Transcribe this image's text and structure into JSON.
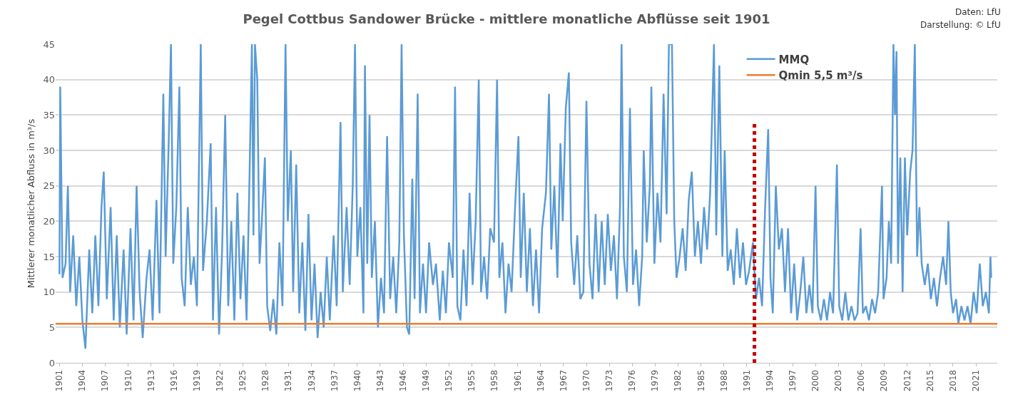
{
  "chart_data": {
    "type": "line",
    "title": "Pegel Cottbus Sandower Brücke - mittlere monatliche Abflüsse seit 1901",
    "ylabel": "Mittlerer monatlicher Abfluss in m³/s",
    "annotations": [
      "Daten: LfU",
      "Darstellung: © LfU"
    ],
    "xlim": [
      1900.5,
      2023.8
    ],
    "xticks": [
      1901,
      1904,
      1907,
      1910,
      1913,
      1916,
      1919,
      1922,
      1925,
      1928,
      1931,
      1934,
      1937,
      1940,
      1943,
      1946,
      1949,
      1952,
      1955,
      1958,
      1961,
      1964,
      1967,
      1970,
      1973,
      1976,
      1979,
      1982,
      1985,
      1988,
      1991,
      1994,
      1997,
      2000,
      2003,
      2006,
      2009,
      2012,
      2015,
      2018,
      2021
    ],
    "ylim": [
      0,
      45
    ],
    "yticks": [
      0,
      5,
      10,
      15,
      20,
      25,
      30,
      35,
      40,
      45
    ],
    "grid": "y",
    "legend": "top right",
    "marker": "none",
    "line_style": "solid",
    "ref_lines": [
      {
        "axis": "x",
        "value": 1992,
        "color": "#c00000",
        "line_style": "dotted"
      }
    ],
    "series": [
      {
        "name": "MMQ",
        "color": "#5b9bd5",
        "x": [
          1901.0,
          1901.1,
          1901.4,
          1901.8,
          1902.1,
          1902.4,
          1902.8,
          1903.2,
          1903.6,
          1904.0,
          1904.4,
          1904.9,
          1905.3,
          1905.7,
          1906.1,
          1906.5,
          1906.8,
          1907.2,
          1907.7,
          1908.1,
          1908.5,
          1908.9,
          1909.4,
          1909.8,
          1910.3,
          1910.7,
          1911.1,
          1911.5,
          1911.9,
          1912.4,
          1912.8,
          1913.2,
          1913.7,
          1914.1,
          1914.6,
          1914.9,
          1915.3,
          1915.6,
          1915.9,
          1916.3,
          1916.7,
          1917.0,
          1917.4,
          1917.8,
          1918.2,
          1918.6,
          1919.0,
          1919.5,
          1919.8,
          1920.3,
          1920.8,
          1921.1,
          1921.5,
          1921.9,
          1922.3,
          1922.7,
          1923.1,
          1923.5,
          1923.9,
          1924.3,
          1924.7,
          1925.1,
          1925.5,
          1925.9,
          1926.2,
          1926.4,
          1926.6,
          1926.9,
          1927.2,
          1927.5,
          1927.9,
          1928.2,
          1928.6,
          1929.0,
          1929.4,
          1929.8,
          1930.2,
          1930.6,
          1930.9,
          1931.3,
          1931.6,
          1932.0,
          1932.4,
          1932.8,
          1933.2,
          1933.6,
          1934.0,
          1934.4,
          1934.8,
          1935.2,
          1935.6,
          1936.0,
          1936.4,
          1936.9,
          1937.3,
          1937.8,
          1938.1,
          1938.6,
          1939.0,
          1939.4,
          1939.7,
          1940.0,
          1940.4,
          1940.8,
          1941.0,
          1941.3,
          1941.6,
          1941.9,
          1942.3,
          1942.7,
          1943.1,
          1943.5,
          1943.9,
          1944.3,
          1944.7,
          1945.1,
          1945.5,
          1945.8,
          1946.1,
          1946.5,
          1946.8,
          1947.2,
          1947.5,
          1947.9,
          1948.2,
          1948.6,
          1949.0,
          1949.4,
          1949.9,
          1950.3,
          1950.8,
          1951.2,
          1951.6,
          1952.0,
          1952.5,
          1952.8,
          1953.1,
          1953.5,
          1953.9,
          1954.3,
          1954.7,
          1955.1,
          1955.5,
          1955.9,
          1956.2,
          1956.6,
          1957.0,
          1957.4,
          1957.9,
          1958.3,
          1958.6,
          1959.0,
          1959.4,
          1959.8,
          1960.2,
          1960.7,
          1961.1,
          1961.4,
          1961.8,
          1962.2,
          1962.6,
          1963.0,
          1963.4,
          1963.8,
          1964.2,
          1964.7,
          1965.1,
          1965.4,
          1965.8,
          1966.2,
          1966.6,
          1966.9,
          1967.3,
          1967.7,
          1968.0,
          1968.4,
          1968.8,
          1969.2,
          1969.6,
          1970.0,
          1970.4,
          1970.8,
          1971.2,
          1971.6,
          1972.0,
          1972.4,
          1972.8,
          1973.2,
          1973.6,
          1974.0,
          1974.4,
          1974.6,
          1974.9,
          1975.3,
          1975.7,
          1976.1,
          1976.5,
          1976.9,
          1977.3,
          1977.5,
          1977.9,
          1978.3,
          1978.5,
          1978.9,
          1979.3,
          1979.7,
          1980.1,
          1980.5,
          1980.8,
          1981.2,
          1981.5,
          1981.8,
          1982.2,
          1982.6,
          1983.0,
          1983.4,
          1983.8,
          1984.2,
          1984.6,
          1985.0,
          1985.4,
          1985.8,
          1986.2,
          1986.7,
          1987.0,
          1987.4,
          1987.8,
          1988.1,
          1988.5,
          1988.9,
          1989.3,
          1989.7,
          1990.1,
          1990.5,
          1990.9,
          1991.3,
          1991.8,
          1992.2,
          1992.6,
          1993.0,
          1993.4,
          1993.8,
          1994.1,
          1994.4,
          1994.8,
          1995.2,
          1995.6,
          1996.0,
          1996.4,
          1996.8,
          1997.2,
          1997.6,
          1998.0,
          1998.4,
          1998.8,
          1999.2,
          1999.6,
          2000.0,
          2000.3,
          2000.7,
          2001.1,
          2001.5,
          2001.9,
          2002.3,
          2002.8,
          2003.1,
          2003.5,
          2003.9,
          2004.3,
          2004.7,
          2005.1,
          2005.5,
          2005.9,
          2006.2,
          2006.6,
          2007.0,
          2007.4,
          2007.8,
          2008.2,
          2008.7,
          2008.9,
          2009.3,
          2009.6,
          2009.9,
          2010.2,
          2010.4,
          2010.6,
          2010.8,
          2011.1,
          2011.4,
          2011.7,
          2012.0,
          2012.4,
          2012.7,
          2013.0,
          2013.3,
          2013.6,
          2013.9,
          2014.3,
          2014.7,
          2015.1,
          2015.5,
          2015.9,
          2016.3,
          2016.7,
          2017.1,
          2017.4,
          2017.7,
          2018.0,
          2018.4,
          2018.7,
          2019.1,
          2019.5,
          2019.9,
          2020.3,
          2020.7,
          2021.1,
          2021.5,
          2021.9,
          2022.3,
          2022.7,
          2022.9,
          2023.0
        ],
        "values": [
          12.5,
          39,
          12,
          14,
          25,
          10,
          18,
          8,
          15,
          6,
          2,
          16,
          7,
          18,
          8,
          22,
          27,
          9,
          22,
          6,
          18,
          5,
          16,
          4,
          19,
          6,
          25,
          10,
          3.5,
          12,
          16,
          6,
          23,
          7,
          38,
          15,
          31,
          45,
          14,
          22,
          39,
          12,
          8,
          22,
          11,
          15,
          8,
          45,
          13,
          20,
          31,
          6,
          22,
          4,
          16,
          35,
          8,
          20,
          6,
          24,
          9,
          18,
          6,
          27,
          45,
          18,
          45,
          40,
          14,
          20,
          29,
          8,
          4.5,
          9,
          4,
          17,
          8,
          45,
          20,
          30,
          10,
          28,
          7,
          17,
          4.5,
          21,
          6,
          14,
          3.5,
          10,
          5,
          15,
          6,
          18,
          8,
          34,
          10,
          22,
          11,
          25,
          45,
          15,
          22,
          7,
          42,
          14,
          35,
          12,
          20,
          5,
          12,
          7,
          32,
          9,
          15,
          7,
          17,
          45,
          18,
          5,
          4,
          26,
          9,
          38,
          7,
          14,
          7,
          17,
          11,
          14,
          6,
          13,
          7,
          17,
          12,
          39,
          8,
          6,
          16,
          8,
          24,
          11,
          20,
          40,
          10,
          15,
          9,
          19,
          17,
          40,
          12,
          17,
          7,
          14,
          10,
          23,
          32,
          12,
          24,
          10,
          19,
          8,
          16,
          7,
          19,
          24,
          38,
          16,
          25,
          12,
          31,
          20,
          36,
          41,
          17,
          11,
          18,
          9,
          10,
          37,
          14,
          9,
          21,
          10,
          20,
          11,
          21,
          13,
          18,
          9,
          22,
          45,
          15,
          10,
          36,
          11,
          16,
          8,
          15,
          30,
          17,
          25,
          39,
          14,
          24,
          17,
          38,
          21,
          45,
          45,
          20,
          12,
          15,
          19,
          13,
          23,
          27,
          15,
          20,
          14,
          22,
          16,
          24,
          45,
          18,
          42,
          15,
          30,
          13,
          16,
          11,
          19,
          12,
          17,
          11,
          13,
          17,
          9,
          12,
          8,
          22,
          33,
          12,
          7,
          25,
          16,
          19,
          10,
          19,
          7,
          14,
          6,
          10,
          15,
          7,
          11,
          7,
          25,
          8,
          6,
          9,
          6,
          10,
          7,
          28,
          8,
          6,
          10,
          6,
          8,
          6,
          7,
          19,
          7,
          8,
          6,
          9,
          7,
          10,
          25,
          9,
          12,
          20,
          14,
          45,
          35,
          44,
          14,
          29,
          10,
          29,
          18,
          27,
          30,
          45,
          15,
          22,
          14,
          11,
          14,
          9,
          12,
          8,
          12,
          15,
          11,
          20,
          10,
          7,
          9,
          5.5,
          8,
          6,
          8,
          5.5,
          10,
          7,
          14,
          8,
          10,
          7,
          15,
          12
        ]
      },
      {
        "name": "Qmin 5,5 m³/s",
        "color": "#ed7d31",
        "x": [
          1900.5,
          2023.8
        ],
        "values": [
          5.5,
          5.5
        ]
      }
    ]
  }
}
